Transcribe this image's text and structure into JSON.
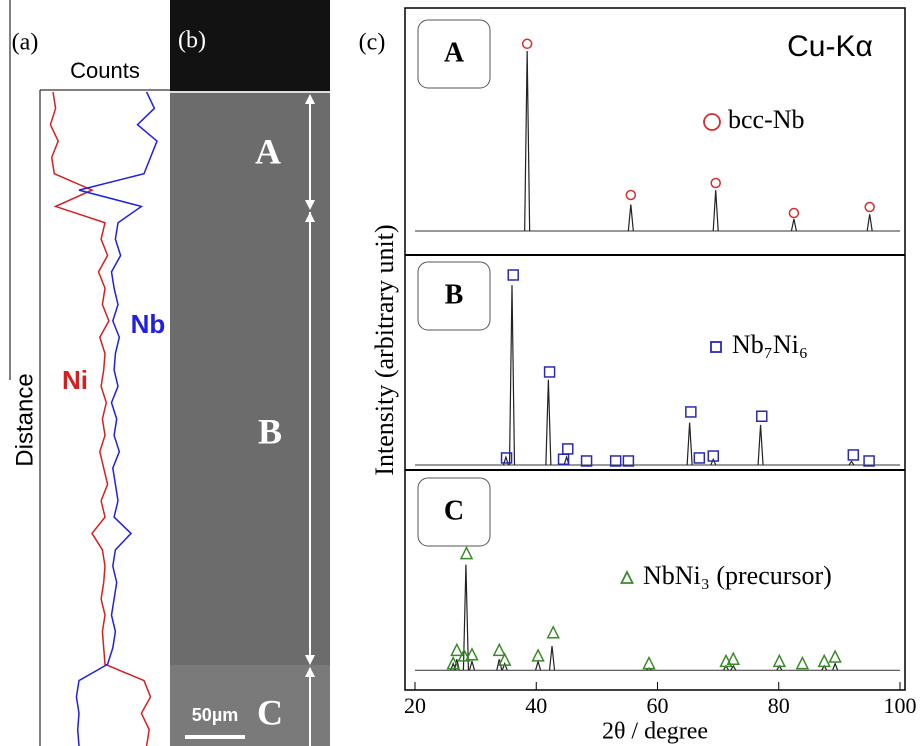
{
  "chart_data": [
    {
      "type": "line",
      "panel_label": "(a)",
      "x_label": "Counts",
      "y_label": "Distance",
      "xlim": [
        0,
        100
      ],
      "ylim": [
        0,
        100
      ],
      "y": [
        0,
        2.5,
        5,
        7.5,
        10,
        12.5,
        15,
        17.5,
        20,
        22.5,
        25,
        27.5,
        30,
        32.5,
        35,
        37.5,
        40,
        42.5,
        45,
        47.5,
        50,
        52.5,
        55,
        57.5,
        60,
        62.5,
        65,
        67.5,
        70,
        72.5,
        75,
        77.5,
        80,
        82.5,
        85,
        87.5,
        90,
        92.5,
        95,
        97.5,
        100
      ],
      "series": [
        {
          "name": "Ni",
          "color": "#d42020",
          "values": [
            10,
            12,
            8,
            14,
            9,
            11,
            40,
            12,
            50,
            47,
            52,
            45,
            50,
            48,
            53,
            46,
            50,
            49,
            47,
            51,
            48,
            50,
            46,
            49,
            52,
            47,
            50,
            40,
            48,
            50,
            49,
            47,
            50,
            48,
            49,
            50,
            80,
            85,
            78,
            84,
            82
          ]
        },
        {
          "name": "Nb",
          "color": "#2020e0",
          "values": [
            82,
            88,
            75,
            90,
            85,
            80,
            30,
            78,
            60,
            58,
            62,
            55,
            57,
            60,
            56,
            61,
            58,
            57,
            60,
            55,
            59,
            57,
            61,
            56,
            58,
            60,
            57,
            70,
            58,
            56,
            59,
            57,
            55,
            58,
            56,
            52,
            30,
            28,
            30,
            29,
            30
          ]
        }
      ]
    },
    {
      "type": "image",
      "panel_label": "(b)",
      "region_labels": [
        "A",
        "B",
        "C"
      ],
      "scale_bar": "50µm"
    },
    {
      "type": "spectrum",
      "panel_label": "(c)",
      "annotation": "Cu-Kα",
      "x_label": "2θ / degree",
      "y_label": "Intensity (arbitrary unit)",
      "xlim": [
        20,
        100
      ],
      "xticks": [
        20,
        40,
        60,
        80,
        100
      ],
      "ylim": [
        0,
        100
      ],
      "panels": [
        {
          "label": "A",
          "phase": "bcc-Nb",
          "marker": "circle",
          "color": "#d03030",
          "baseline": 10,
          "peaks": {
            "x": [
              38.5,
              55.6,
              69.6,
              82.5,
              95.0
            ],
            "values": [
              85,
              21,
              27,
              15,
              17
            ]
          },
          "markers": {
            "x": [
              38.5,
              55.6,
              69.6,
              82.5,
              95.0
            ],
            "values": [
              88,
              25,
              30,
              17.5,
              20
            ]
          }
        },
        {
          "label": "B",
          "phase": "Nb₇Ni₆",
          "marker": "square",
          "color": "#2a2ab0",
          "baseline": 2.3,
          "peaks": {
            "x": [
              35.0,
              36.0,
              42.0,
              45.0,
              65.3,
              69.2,
              77.0,
              92.0
            ],
            "values": [
              6,
              86,
              42,
              6,
              22,
              5,
              21,
              4
            ]
          },
          "markers": {
            "x": [
              35.1,
              36.2,
              42.2,
              44.5,
              45.2,
              48.3,
              53.1,
              55.2,
              65.5,
              66.9,
              69.2,
              77.2,
              92.3,
              94.9
            ],
            "values": [
              5.6,
              90.7,
              45.6,
              5,
              9.8,
              4.2,
              4.2,
              4.2,
              27,
              5.6,
              6.5,
              25,
              7,
              4.2
            ]
          }
        },
        {
          "label": "C",
          "phase": "NbNi₃ (precursor)",
          "marker": "triangle",
          "color": "#3a8a2a",
          "baseline": 9,
          "peaks": {
            "x": [
              26.3,
              26.9,
              28.4,
              29.4,
              33.9,
              34.8,
              40.3,
              42.6,
              58.6,
              71.3,
              72.5,
              80.1,
              87.5,
              89.3
            ],
            "values": [
              12,
              14,
              57,
              13,
              14,
              12,
              13,
              20,
              10,
              11,
              11,
              11,
              11,
              12
            ]
          },
          "markers": {
            "x": [
              26.3,
              26.9,
              28.1,
              28.5,
              29.4,
              33.9,
              34.8,
              40.3,
              42.8,
              58.6,
              71.3,
              72.5,
              80.1,
              83.9,
              87.5,
              89.3
            ],
            "values": [
              12,
              18,
              15.5,
              62,
              16,
              18,
              13.6,
              15.5,
              26,
              12,
              13,
              14,
              13,
              12,
              13,
              15
            ]
          }
        }
      ]
    }
  ]
}
